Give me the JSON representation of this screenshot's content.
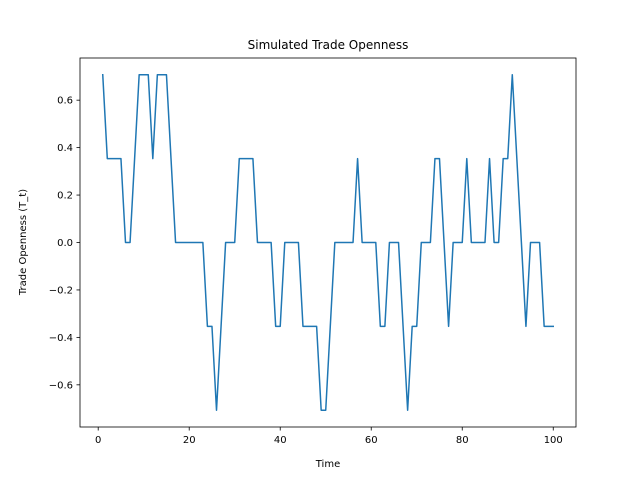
{
  "chart_data": {
    "type": "line",
    "title": "Simulated Trade Openness",
    "xlabel": "Time",
    "ylabel": "Trade Openness (T_t)",
    "xlim": [
      -4,
      105
    ],
    "ylim": [
      -0.7778,
      0.7778
    ],
    "xticks": [
      0,
      20,
      40,
      60,
      80,
      100
    ],
    "xtick_labels": [
      "0",
      "20",
      "40",
      "60",
      "80",
      "100"
    ],
    "yticks": [
      -0.6,
      -0.4,
      -0.2,
      0.0,
      0.2,
      0.4,
      0.6
    ],
    "ytick_labels": [
      "−0.6",
      "−0.4",
      "−0.2",
      "0.0",
      "0.2",
      "0.4",
      "0.6"
    ],
    "grid": false,
    "legend": null,
    "series": [
      {
        "color": "#1f77b4",
        "x": [
          1,
          2,
          3,
          4,
          5,
          6,
          7,
          8,
          9,
          10,
          11,
          12,
          13,
          14,
          15,
          16,
          17,
          18,
          19,
          20,
          21,
          22,
          23,
          24,
          25,
          26,
          27,
          28,
          29,
          30,
          31,
          32,
          33,
          34,
          35,
          36,
          37,
          38,
          39,
          40,
          41,
          42,
          43,
          44,
          45,
          46,
          47,
          48,
          49,
          50,
          51,
          52,
          53,
          54,
          55,
          56,
          57,
          58,
          59,
          60,
          61,
          62,
          63,
          64,
          65,
          66,
          67,
          68,
          69,
          70,
          71,
          72,
          73,
          74,
          75,
          76,
          77,
          78,
          79,
          80,
          81,
          82,
          83,
          84,
          85,
          86,
          87,
          88,
          89,
          90,
          91,
          92,
          93,
          94,
          95,
          96,
          97,
          98,
          99,
          100
        ],
        "y": [
          0.7071,
          0.3536,
          0.3536,
          0.3536,
          0.3536,
          0.0,
          0.0,
          0.3536,
          0.7071,
          0.7071,
          0.7071,
          0.3536,
          0.7071,
          0.7071,
          0.7071,
          0.3536,
          0.0,
          0.0,
          0.0,
          0.0,
          0.0,
          0.0,
          0.0,
          -0.3536,
          -0.3536,
          -0.7071,
          -0.3536,
          0.0,
          0.0,
          0.0,
          0.3536,
          0.3536,
          0.3536,
          0.3536,
          0.0,
          0.0,
          0.0,
          0.0,
          -0.3536,
          -0.3536,
          0.0,
          0.0,
          0.0,
          0.0,
          -0.3536,
          -0.3536,
          -0.3536,
          -0.3536,
          -0.7071,
          -0.7071,
          -0.3536,
          0.0,
          0.0,
          0.0,
          0.0,
          0.0,
          0.3536,
          0.0,
          0.0,
          0.0,
          0.0,
          -0.3536,
          -0.3536,
          0.0,
          0.0,
          0.0,
          -0.3536,
          -0.7071,
          -0.3536,
          -0.3536,
          0.0,
          0.0,
          0.0,
          0.3536,
          0.3536,
          0.0,
          -0.3536,
          0.0,
          0.0,
          0.0,
          0.3536,
          0.0,
          0.0,
          0.0,
          0.0,
          0.3536,
          0.0,
          0.0,
          0.3536,
          0.3536,
          0.7071,
          0.3536,
          0.0,
          -0.3536,
          0.0,
          0.0,
          0.0,
          -0.3536,
          -0.3536,
          -0.3536
        ]
      }
    ]
  }
}
